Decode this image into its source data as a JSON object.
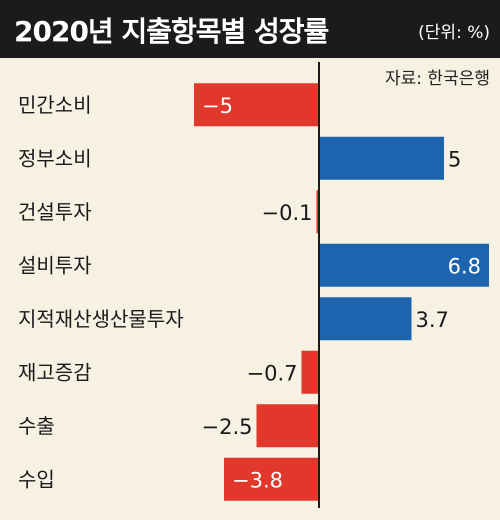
{
  "header": {
    "title": "2020년 지출항목별 성장률",
    "unit": "(단위: %)"
  },
  "source": "자료: 한국은행",
  "colors": {
    "positive": "#1c64ad",
    "negative": "#e2382b",
    "axis": "#1b1b1b",
    "background": "#f6f1e2"
  },
  "chart_data": {
    "type": "bar",
    "orientation": "horizontal",
    "title": "2020년 지출항목별 성장률",
    "unit": "%",
    "categories": [
      "민간소비",
      "정부소비",
      "건설투자",
      "설비투자",
      "지적재산생산물투자",
      "재고증감",
      "수출",
      "수입"
    ],
    "values": [
      -5,
      5,
      -0.1,
      6.8,
      3.7,
      -0.7,
      -2.5,
      -3.8
    ],
    "labels": [
      "−5",
      "5",
      "−0.1",
      "6.8",
      "3.7",
      "−0.7",
      "−2.5",
      "−3.8"
    ],
    "xlim": [
      -7.3,
      6.8
    ],
    "grid": false,
    "legend": "none"
  }
}
